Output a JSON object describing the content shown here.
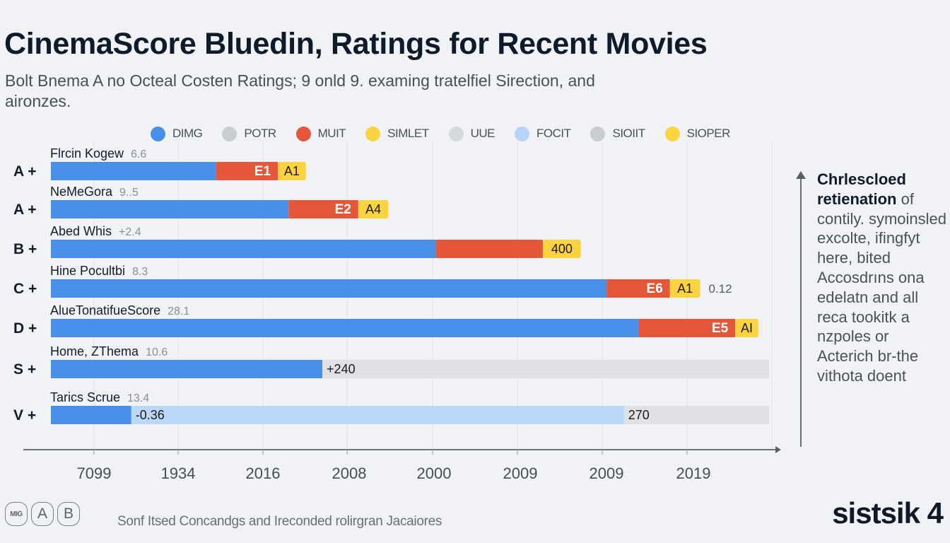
{
  "header": {
    "title": "CinemaScore Bluedin, Ratings for Recent Movies",
    "subtitle": "Bolt Bnema A no Octeal Costen Ratings; 9 onld 9. examing tratelfiel Sirection, and aironzes."
  },
  "legend": [
    {
      "label": "DIMG",
      "color": "#4a8fe7"
    },
    {
      "label": "POTR",
      "color": "#c9ccd1"
    },
    {
      "label": "MUIT",
      "color": "#e4573a"
    },
    {
      "label": "SIMLET",
      "color": "#fbd341"
    },
    {
      "label": "UUE",
      "color": "#d5d8dd"
    },
    {
      "label": "FOCIT",
      "color": "#b6d4f7"
    },
    {
      "label": "SIOIIT",
      "color": "#c9ccd1"
    },
    {
      "label": "SIOPER",
      "color": "#fbd341"
    }
  ],
  "chart_data": {
    "type": "bar",
    "orientation": "horizontal-stacked",
    "title": "CinemaScore Bluedin, Ratings for Recent Movies",
    "xlabel": "",
    "ylabel": "",
    "xlim": [
      0,
      100
    ],
    "grid": true,
    "legend_position": "top",
    "x_tick_labels": [
      "7099",
      "1934",
      "2016",
      "2008",
      "2000",
      "2009",
      "2009",
      "2019"
    ],
    "rows": [
      {
        "grade": "A +",
        "name": "Flrcin Kogew",
        "value": "6.6",
        "segments": [
          {
            "series": "DIMG",
            "value": 23.0,
            "color": "#4a8fe7",
            "label": ""
          },
          {
            "series": "MUIT",
            "value": 8.6,
            "color": "#e4573a",
            "label": "E1"
          },
          {
            "series": "SIMLET",
            "value": 3.9,
            "color": "#fbd341",
            "label": "A1"
          }
        ],
        "after_label": ""
      },
      {
        "grade": "A +",
        "name": "NeMeGora",
        "value": "9..5",
        "segments": [
          {
            "series": "DIMG",
            "value": 33.1,
            "color": "#4a8fe7",
            "label": ""
          },
          {
            "series": "MUIT",
            "value": 9.7,
            "color": "#e4573a",
            "label": "E2"
          },
          {
            "series": "SIMLET",
            "value": 4.2,
            "color": "#fbd341",
            "label": "A4"
          }
        ],
        "after_label": ""
      },
      {
        "grade": "B +",
        "name": "Abed Whis",
        "value": "+2.4",
        "segments": [
          {
            "series": "DIMG",
            "value": 53.6,
            "color": "#4a8fe7",
            "label": ""
          },
          {
            "series": "MUIT",
            "value": 14.9,
            "color": "#e4573a",
            "label": ""
          },
          {
            "series": "SIMLET",
            "value": 5.3,
            "color": "#fbd341",
            "label": "400"
          }
        ],
        "after_label": ""
      },
      {
        "grade": "C +",
        "name": "Hine Pocultbi",
        "value": "8.3",
        "segments": [
          {
            "series": "DIMG",
            "value": 77.4,
            "color": "#4a8fe7",
            "label": ""
          },
          {
            "series": "MUIT",
            "value": 8.8,
            "color": "#e4573a",
            "label": "E6"
          },
          {
            "series": "SIMLET",
            "value": 4.2,
            "color": "#fbd341",
            "label": "A1"
          }
        ],
        "after_label": "0.12"
      },
      {
        "grade": "D +",
        "name": "AlueTonatifueScore",
        "value": "28.1",
        "segments": [
          {
            "series": "DIMG",
            "value": 81.8,
            "color": "#4a8fe7",
            "label": ""
          },
          {
            "series": "MUIT",
            "value": 13.5,
            "color": "#e4573a",
            "label": "E5"
          },
          {
            "series": "SIMLET",
            "value": 3.2,
            "color": "#fbd341",
            "label": "AI"
          }
        ],
        "after_label": ""
      },
      {
        "grade": "S +",
        "name": "Home, ZThema",
        "value": "10.6",
        "segments": [
          {
            "series": "DIMG",
            "value": 37.8,
            "color": "#4a8fe7",
            "label": ""
          },
          {
            "series": "UUE",
            "value": 62.2,
            "color": "#dfe1e5",
            "label": "+240"
          }
        ],
        "after_label": ""
      },
      {
        "grade": "V +",
        "name": "Tarics Scrue",
        "value": "13.4",
        "segments": [
          {
            "series": "DIMG",
            "value": 11.2,
            "color": "#4a8fe7",
            "label": ""
          },
          {
            "series": "FOCIT",
            "value": 68.6,
            "color": "#bcd7f8",
            "label": "-0.36"
          },
          {
            "series": "UUE",
            "value": 20.2,
            "color": "#dfe1e5",
            "label": "270"
          }
        ],
        "after_label": ""
      }
    ]
  },
  "side_panel": {
    "heading": "Chrlescloed",
    "heading_bold_second": "retienation",
    "heading_rest": " of",
    "body": "contily. symoinsled excolte, ifingfyt here, bited Accosdrıns ona edelatn and all reca tookitk a nzpoles or Acterich br-the vithota doent"
  },
  "footer": {
    "badges": [
      "MIG",
      "A",
      "B"
    ],
    "note": "Sonf Itsed Concandgs and Ireconded rolirgran Jacaiores",
    "brand": "sistsik 4"
  }
}
